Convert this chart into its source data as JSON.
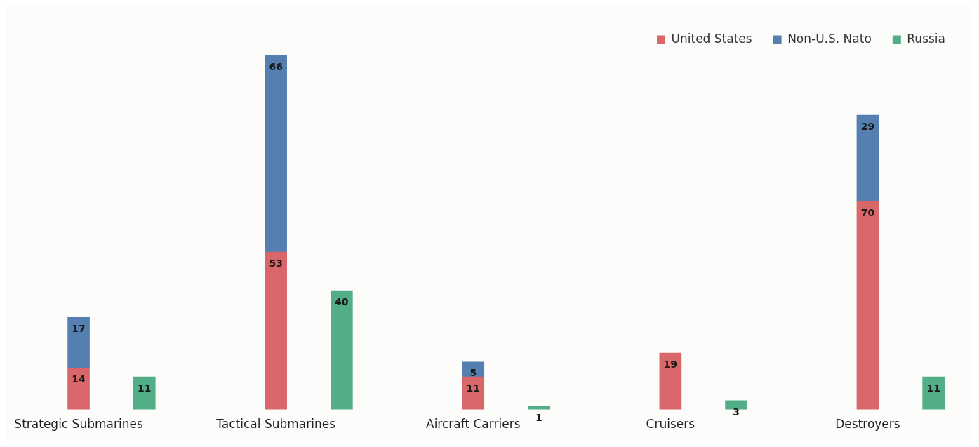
{
  "chart_data": {
    "type": "bar",
    "categories": [
      "Strategic Submarines",
      null,
      null,
      "Tactical Submarines",
      null,
      null,
      "Aircraft Carriers",
      null,
      null,
      "Cruisers",
      null,
      null,
      "Destroyers",
      null
    ],
    "series": [
      {
        "name": "United States",
        "color": "#d9676a",
        "values": [
          14,
          null,
          null,
          53,
          null,
          null,
          11,
          null,
          null,
          19,
          null,
          null,
          70,
          null
        ]
      },
      {
        "name": "Non-U.S. Nato",
        "color": "#547fb0",
        "values": [
          17,
          null,
          null,
          66,
          null,
          null,
          5,
          null,
          null,
          null,
          null,
          null,
          29,
          null
        ]
      },
      {
        "name": "Russia",
        "color": "#52ae86",
        "values": [
          null,
          11,
          null,
          null,
          40,
          null,
          null,
          1,
          null,
          null,
          3,
          null,
          null,
          11
        ]
      }
    ],
    "stacked": true,
    "data_labels": true,
    "legend": "top right",
    "grid": false,
    "tick_labels": "x"
  }
}
